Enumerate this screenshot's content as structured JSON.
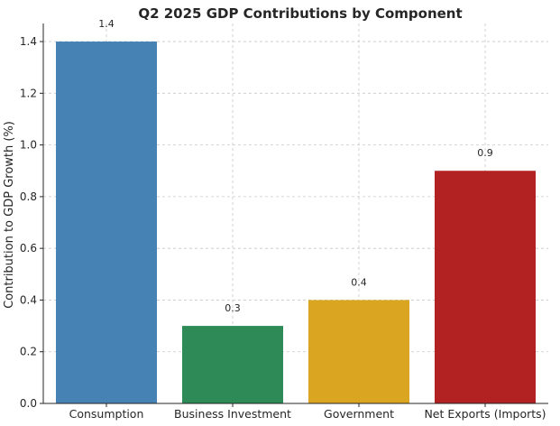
{
  "chart_data": {
    "type": "bar",
    "title": "Q2 2025 GDP Contributions by Component",
    "xlabel": "",
    "ylabel": "Contribution to GDP Growth (%)",
    "categories": [
      "Consumption",
      "Business Investment",
      "Government",
      "Net Exports (Imports)"
    ],
    "values": [
      1.4,
      0.3,
      0.4,
      0.9
    ],
    "data_labels": [
      "1.4",
      "0.3",
      "0.4",
      "0.9"
    ],
    "colors": [
      "#4682b4",
      "#2e8b57",
      "#daa520",
      "#b22222"
    ],
    "ylim": [
      0,
      1.47
    ],
    "yticks": [
      0.0,
      0.2,
      0.4,
      0.6,
      0.8,
      1.0,
      1.2,
      1.4
    ],
    "ytick_labels": [
      "0.0",
      "0.2",
      "0.4",
      "0.6",
      "0.8",
      "1.0",
      "1.2",
      "1.4"
    ],
    "grid": true,
    "grid_style": "dashed"
  }
}
